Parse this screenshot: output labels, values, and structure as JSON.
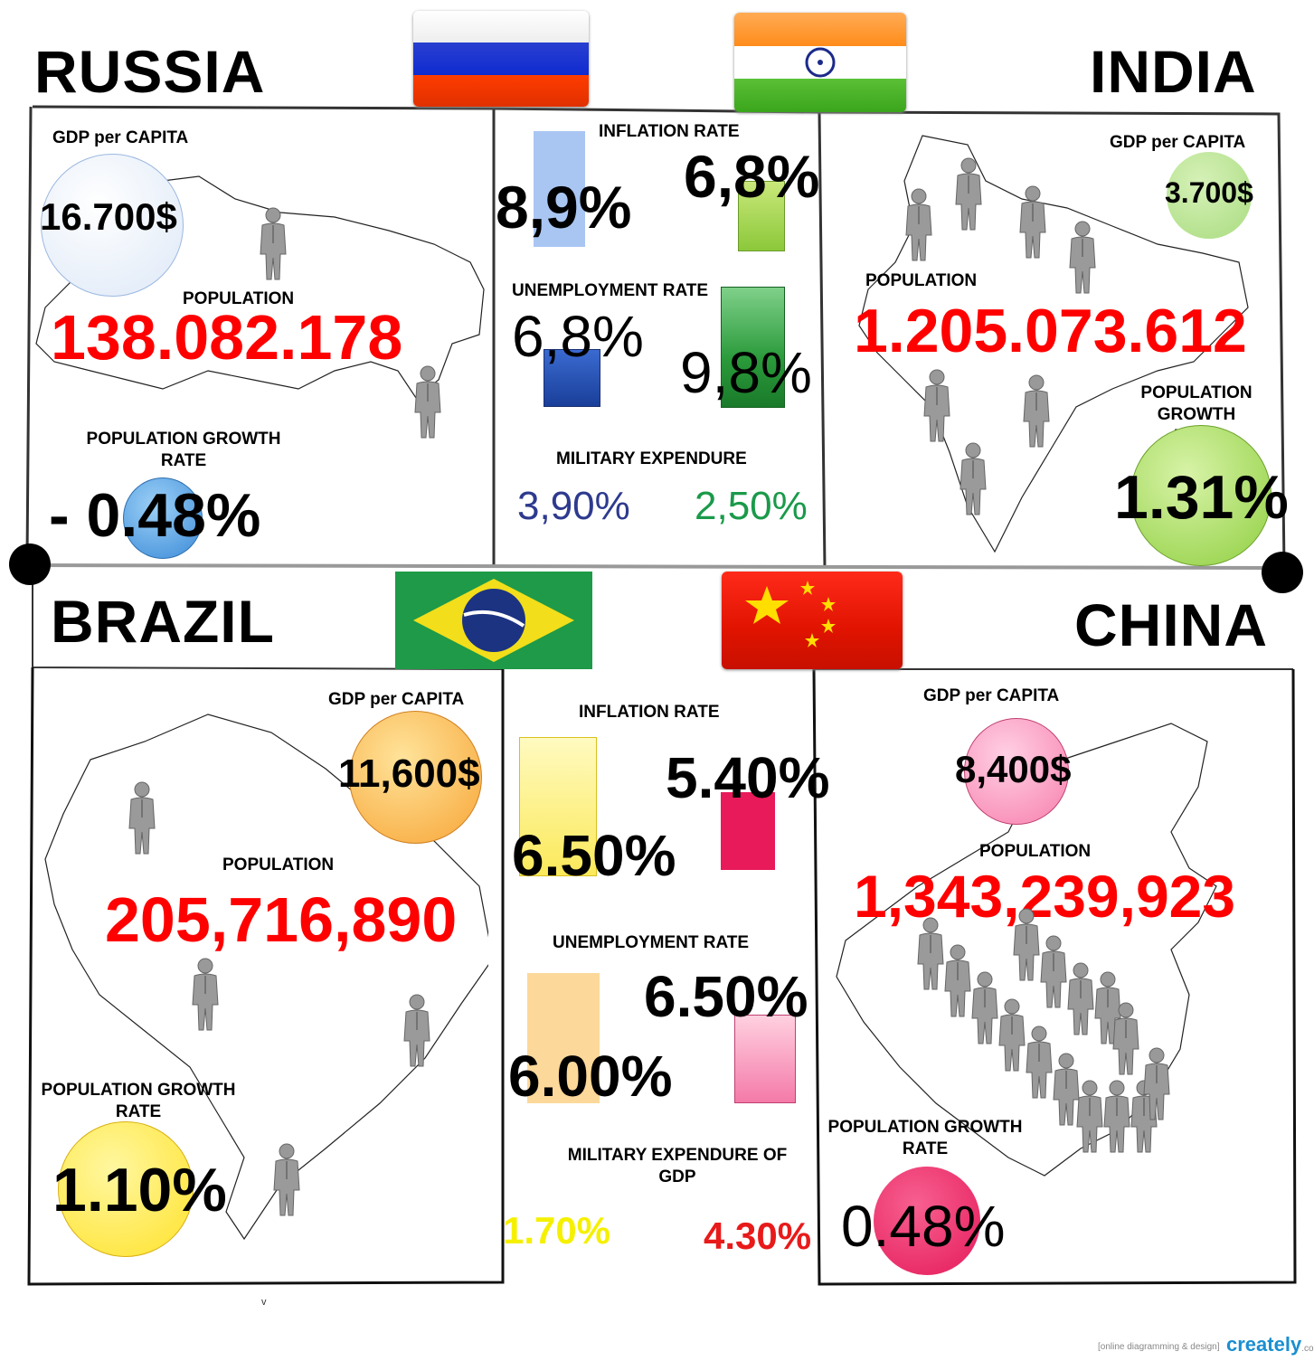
{
  "russia": {
    "name": "RUSSIA",
    "gdp_label": "GDP per CAPITA",
    "gdp_value": "16.700$",
    "population_label": "POPULATION",
    "population_value": "138.082.178",
    "growth_label": "POPULATION GROWTH RATE",
    "growth_value": "- 0.48%"
  },
  "india": {
    "name": "INDIA",
    "gdp_label": "GDP per CAPITA",
    "gdp_value": "3.700$",
    "population_label": "POPULATION",
    "population_value": "1.205.073.612",
    "growth_label": "POPULATION GROWTH RATE",
    "growth_value": "1.31%"
  },
  "brazil": {
    "name": "BRAZIL",
    "gdp_label": "GDP per CAPITA",
    "gdp_value": "11,600$",
    "population_label": "POPULATION",
    "population_value": "205,716,890",
    "growth_label": "POPULATION GROWTH RATE",
    "growth_value": "1.10%"
  },
  "china": {
    "name": "CHINA",
    "gdp_label": "GDP per CAPITA",
    "gdp_value": "8,400$",
    "population_label": "POPULATION",
    "population_value": "1,343,239,923",
    "growth_label": "POPULATION GROWTH RATE",
    "growth_value": "0.48%"
  },
  "ru_in_compare": {
    "inflation_label": "INFLATION RATE",
    "inflation_russia": "8,9%",
    "inflation_india": "6,8%",
    "unemployment_label": "UNEMPLOYMENT RATE",
    "unemployment_russia": "6,8%",
    "unemployment_india": "9,8%",
    "military_label": "MILITARY EXPENDURE",
    "military_russia": "3,90%",
    "military_india": "2,50%"
  },
  "br_cn_compare": {
    "inflation_label": "INFLATION RATE",
    "inflation_brazil": "6.50%",
    "inflation_china": "5.40%",
    "unemployment_label": "UNEMPLOYMENT RATE",
    "unemployment_brazil": "6.00%",
    "unemployment_china": "6.50%",
    "military_label": "MILITARY EXPENDURE OF GDP",
    "military_brazil": "1.70%",
    "military_china": "4.30%"
  },
  "stray_mark": "v",
  "footer": {
    "tagline": "[online diagramming & design]",
    "brand": "creately",
    "brand_suffix": ".com"
  },
  "colors": {
    "russia_gdp": "#e3ecf8",
    "russia_growth": "#4f9be0",
    "india_gdp": "#a9dc7f",
    "india_growth": "#9ed85e",
    "brazil_gdp": "#f7a536",
    "brazil_growth": "#ffe22a",
    "china_gdp": "#f77fad",
    "china_growth": "#e51a5b"
  }
}
